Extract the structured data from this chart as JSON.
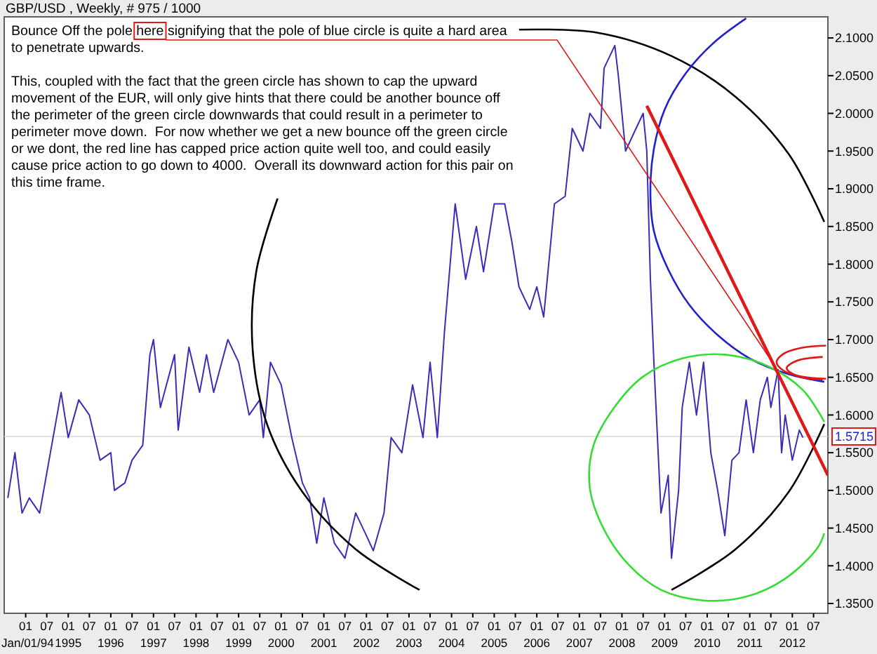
{
  "chart_data": {
    "type": "line",
    "title": "GBP/USD , Weekly, # 975 / 1000",
    "annotations": [
      "Bounce Off the pole here signifying that the pole of blue circle is quite a hard area to penetrate upwards.",
      "This, coupled with the fact that the green circle has shown to cap the upward movement of the EUR, will only give hints that there could be another bounce off the perimeter of the green circle downwards that could result in a perimeter to perimeter move down.  For now whether we get a new bounce off the green circle or we dont, the red line has capped price action quite well too, and could easily cause price action to go down to 4000.  Overall its downward action for this pair on this time frame."
    ],
    "ref_lines": [
      {
        "axis": "y",
        "value": 1.5715,
        "label": "1.5715",
        "color": "#d8d8d8"
      }
    ],
    "xlim": [
      "1993-07",
      "2012-11"
    ],
    "ylim": [
      1.337,
      2.128
    ],
    "xticks": [
      {
        "value": "1994-01",
        "label": "01\nJan/01/94"
      },
      {
        "value": "1994-07",
        "label": "07"
      },
      {
        "value": "1995-01",
        "label": "01\n1995"
      },
      {
        "value": "1995-07",
        "label": "07"
      },
      {
        "value": "1996-01",
        "label": "01\n1996"
      },
      {
        "value": "1996-07",
        "label": "07"
      },
      {
        "value": "1997-01",
        "label": "01\n1997"
      },
      {
        "value": "1997-07",
        "label": "07"
      },
      {
        "value": "1998-01",
        "label": "01\n1998"
      },
      {
        "value": "1998-07",
        "label": "07"
      },
      {
        "value": "1999-01",
        "label": "01\n1999"
      },
      {
        "value": "1999-07",
        "label": "07"
      },
      {
        "value": "2000-01",
        "label": "01\n2000"
      },
      {
        "value": "2000-07",
        "label": "07"
      },
      {
        "value": "2001-01",
        "label": "01\n2001"
      },
      {
        "value": "2001-07",
        "label": "07"
      },
      {
        "value": "2002-01",
        "label": "01\n2002"
      },
      {
        "value": "2002-07",
        "label": "07"
      },
      {
        "value": "2003-01",
        "label": "01\n2003"
      },
      {
        "value": "2003-07",
        "label": "07"
      },
      {
        "value": "2004-01",
        "label": "01\n2004"
      },
      {
        "value": "2004-07",
        "label": "07"
      },
      {
        "value": "2005-01",
        "label": "01\n2005"
      },
      {
        "value": "2005-07",
        "label": "07"
      },
      {
        "value": "2006-01",
        "label": "01\n2006"
      },
      {
        "value": "2006-07",
        "label": "07"
      },
      {
        "value": "2007-01",
        "label": "01\n2007"
      },
      {
        "value": "2007-07",
        "label": "07"
      },
      {
        "value": "2008-01",
        "label": "01\n2008"
      },
      {
        "value": "2008-07",
        "label": "07"
      },
      {
        "value": "2009-01",
        "label": "01\n2009"
      },
      {
        "value": "2009-07",
        "label": "07"
      },
      {
        "value": "2010-01",
        "label": "01\n2010"
      },
      {
        "value": "2010-07",
        "label": "07"
      },
      {
        "value": "2011-01",
        "label": "01\n2011"
      },
      {
        "value": "2011-07",
        "label": "07"
      },
      {
        "value": "2012-01",
        "label": "01\n2012"
      },
      {
        "value": "2012-07",
        "label": "07"
      }
    ],
    "yticks": [
      {
        "value": 1.35,
        "label": "1.3500"
      },
      {
        "value": 1.4,
        "label": "1.4000"
      },
      {
        "value": 1.45,
        "label": "1.4500"
      },
      {
        "value": 1.5,
        "label": "1.5000"
      },
      {
        "value": 1.55,
        "label": "1.5500"
      },
      {
        "value": 1.6,
        "label": "1.6000"
      },
      {
        "value": 1.65,
        "label": "1.6500"
      },
      {
        "value": 1.7,
        "label": "1.7000"
      },
      {
        "value": 1.75,
        "label": "1.7500"
      },
      {
        "value": 1.8,
        "label": "1.8000"
      },
      {
        "value": 1.85,
        "label": "1.8500"
      },
      {
        "value": 1.9,
        "label": "1.9000"
      },
      {
        "value": 1.95,
        "label": "1.9500"
      },
      {
        "value": 2.0,
        "label": "2.0000"
      },
      {
        "value": 2.05,
        "label": "2.0500"
      },
      {
        "value": 2.1,
        "label": "2.1000"
      }
    ],
    "series": [
      {
        "color": "#3a2cb8",
        "x": [
          "1993-08",
          "1993-10",
          "1993-12",
          "1994-02",
          "1994-05",
          "1994-08",
          "1994-11",
          "1995-01",
          "1995-04",
          "1995-07",
          "1995-10",
          "1996-01",
          "1996-02",
          "1996-05",
          "1996-07",
          "1996-10",
          "1996-12",
          "1997-01",
          "1997-03",
          "1997-07",
          "1997-08",
          "1997-11",
          "1998-02",
          "1998-04",
          "1998-06",
          "1998-10",
          "1999-01",
          "1999-04",
          "1999-07",
          "1999-08",
          "1999-10",
          "2000-01",
          "2000-04",
          "2000-07",
          "2000-09",
          "2000-11",
          "2001-01",
          "2001-04",
          "2001-07",
          "2001-10",
          "2002-01",
          "2002-03",
          "2002-06",
          "2002-08",
          "2002-11",
          "2003-02",
          "2003-05",
          "2003-07",
          "2003-09",
          "2003-11",
          "2004-02",
          "2004-05",
          "2004-08",
          "2004-10",
          "2005-01",
          "2005-04",
          "2005-06",
          "2005-08",
          "2005-11",
          "2006-01",
          "2006-03",
          "2006-06",
          "2006-09",
          "2006-11",
          "2007-02",
          "2007-04",
          "2007-07",
          "2007-08",
          "2007-11",
          "2007-12",
          "2008-02",
          "2008-05",
          "2008-07",
          "2008-08",
          "2008-09",
          "2008-10",
          "2008-12",
          "2009-02",
          "2009-03",
          "2009-05",
          "2009-06",
          "2009-08",
          "2009-10",
          "2009-12",
          "2010-02",
          "2010-04",
          "2010-06",
          "2010-08",
          "2010-10",
          "2010-12",
          "2011-02",
          "2011-04",
          "2011-06",
          "2011-07",
          "2011-09",
          "2011-10",
          "2011-11",
          "2012-01",
          "2012-03",
          "2012-04"
        ],
        "values": [
          1.49,
          1.55,
          1.47,
          1.49,
          1.47,
          1.55,
          1.63,
          1.57,
          1.62,
          1.6,
          1.54,
          1.55,
          1.5,
          1.51,
          1.54,
          1.56,
          1.68,
          1.7,
          1.61,
          1.68,
          1.58,
          1.69,
          1.63,
          1.68,
          1.63,
          1.7,
          1.67,
          1.6,
          1.62,
          1.57,
          1.67,
          1.64,
          1.57,
          1.51,
          1.49,
          1.43,
          1.49,
          1.43,
          1.41,
          1.47,
          1.44,
          1.42,
          1.47,
          1.57,
          1.55,
          1.64,
          1.57,
          1.67,
          1.57,
          1.71,
          1.88,
          1.78,
          1.85,
          1.79,
          1.88,
          1.88,
          1.83,
          1.77,
          1.74,
          1.77,
          1.73,
          1.88,
          1.89,
          1.98,
          1.95,
          2.0,
          1.98,
          2.06,
          2.09,
          2.05,
          1.95,
          1.98,
          2.0,
          1.95,
          1.78,
          1.67,
          1.47,
          1.52,
          1.41,
          1.5,
          1.61,
          1.67,
          1.6,
          1.67,
          1.55,
          1.5,
          1.44,
          1.54,
          1.55,
          1.62,
          1.55,
          1.62,
          1.65,
          1.61,
          1.66,
          1.55,
          1.6,
          1.54,
          1.58,
          1.57
        ]
      },
      {
        "type": "line",
        "color": "#000000",
        "x": [
          "2012-10",
          "2011-12",
          "2010-09",
          "2009-03",
          "2007-06",
          "2005-08",
          "2003-11",
          "2002-04",
          "2000-12",
          "1999-12",
          "1999-06",
          "1999-05",
          "1999-09",
          "2000-07",
          "2001-10",
          "2003-04",
          "2005-01",
          "2006-04",
          "2007-06",
          "2009-03",
          "2010-09",
          "2011-12",
          "2012-10"
        ],
        "values": [
          1.856,
          1.946,
          2.022,
          2.076,
          2.107,
          2.111,
          null,
          null,
          null,
          1.887,
          1.79,
          1.688,
          1.588,
          1.498,
          1.422,
          1.368,
          null,
          null,
          null,
          1.368,
          1.422,
          1.498,
          1.588
        ]
      },
      {
        "type": "line",
        "color": "#2020d0",
        "x": [
          "2010-12",
          "2010-03",
          "2009-07",
          "2009-01",
          "2008-10",
          "2008-09",
          "2008-10",
          "2009-02",
          "2009-08",
          "2010-04",
          "2011-01",
          "2011-12",
          "2012-10"
        ],
        "values": [
          2.126,
          2.094,
          2.053,
          2.005,
          1.953,
          1.899,
          1.844,
          1.793,
          1.746,
          1.706,
          1.675,
          1.654,
          1.644
        ]
      },
      {
        "type": "line",
        "color": "#33dd33",
        "x": [
          "2012-10",
          "2012-04",
          "2011-06",
          "2010-06",
          "2009-06",
          "2008-07",
          "2007-11",
          "2007-05",
          "2007-04",
          "2007-08",
          "2008-03",
          "2008-12",
          "2009-12",
          "2010-12",
          "2011-11",
          "2012-08",
          "2012-10"
        ],
        "values": [
          1.591,
          1.633,
          1.665,
          1.68,
          1.675,
          1.651,
          1.611,
          1.559,
          1.503,
          1.448,
          1.401,
          1.368,
          1.354,
          1.359,
          1.383,
          1.423,
          1.443
        ]
      },
      {
        "type": "line",
        "color": "#e01818",
        "x": [
          "2012-10-16",
          "2012-03-17",
          "2011-10-16",
          "2011-08-19",
          "2011-10-16",
          "2012-03-17",
          "2012-10-16"
        ],
        "values": [
          1.692,
          1.689,
          1.681,
          1.67,
          1.659,
          1.651,
          1.648
        ]
      },
      {
        "type": "line",
        "color": "#e01818",
        "x": [
          "2012-09-17",
          "2012-02-10",
          "2011-11-14",
          "2012-02-10",
          "2012-09-17"
        ],
        "values": [
          1.677,
          1.672,
          1.662,
          1.652,
          1.647
        ]
      },
      {
        "type": "line",
        "color": "#e01818",
        "x": [
          "2008-08",
          "2012-11"
        ],
        "values": [
          2.01,
          1.52
        ]
      }
    ]
  }
}
